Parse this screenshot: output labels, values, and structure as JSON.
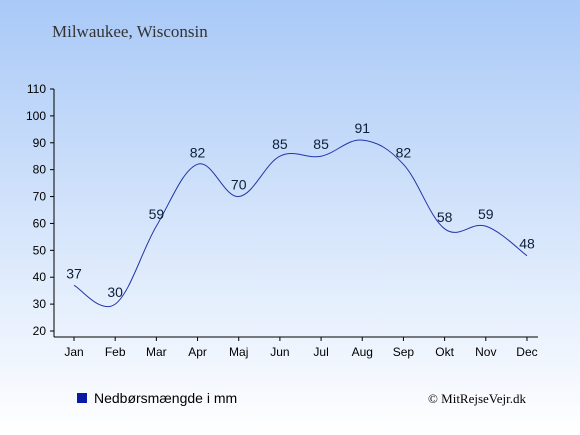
{
  "colors": {
    "bg_top": "#a9c9f7",
    "bg_bottom": "#ffffff",
    "line": "#2236a8",
    "legend_swatch": "#0a1aa6",
    "text_dark": "#0b1f3a"
  },
  "chart_data": {
    "type": "line",
    "title": "Milwaukee, Wisconsin",
    "categories": [
      "Jan",
      "Feb",
      "Mar",
      "Apr",
      "Maj",
      "Jun",
      "Jul",
      "Aug",
      "Sep",
      "Okt",
      "Nov",
      "Dec"
    ],
    "series": [
      {
        "name": "Nedbørsmængde i mm",
        "values": [
          37,
          30,
          59,
          82,
          70,
          85,
          85,
          91,
          82,
          58,
          59,
          48
        ]
      }
    ],
    "yticks": [
      20,
      30,
      40,
      50,
      60,
      70,
      80,
      90,
      100,
      110
    ],
    "ylim": [
      20,
      110
    ],
    "grid": false,
    "legend": "bottom-left",
    "credit": "© MitRejseVejr.dk"
  }
}
